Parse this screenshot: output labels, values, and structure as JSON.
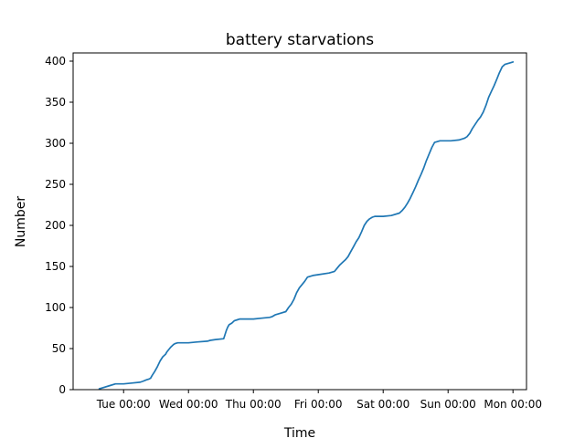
{
  "chart_data": {
    "type": "line",
    "title": "battery starvations",
    "xlabel": "Time",
    "ylabel": "Number",
    "grid": false,
    "legend": "none",
    "x_ticks": [
      {
        "label": "Tue 00:00",
        "x": "2019-01-01 00:00"
      },
      {
        "label": "Wed 00:00",
        "x": "2019-01-02 00:00"
      },
      {
        "label": "Thu 00:00",
        "x": "2019-01-03 00:00"
      },
      {
        "label": "Fri 00:00",
        "x": "2019-01-04 00:00"
      },
      {
        "label": "Sat 00:00",
        "x": "2019-01-05 00:00"
      },
      {
        "label": "Sun 00:00",
        "x": "2019-01-06 00:00"
      },
      {
        "label": "Mon 00:00",
        "x": "2019-01-07 00:00"
      }
    ],
    "xlim": [
      "2018-12-31 05:20",
      "2019-01-07 05:00"
    ],
    "ylim": [
      0,
      410
    ],
    "y_ticks": [
      0,
      50,
      100,
      150,
      200,
      250,
      300,
      350,
      400
    ],
    "series": [
      {
        "name": "",
        "color": "#1f77b4",
        "x": [
          "2018-12-31 15:00",
          "2018-12-31 16:00",
          "2018-12-31 19:00",
          "2018-12-31 21:00",
          "2019-01-01 00:00",
          "2019-01-01 03:00",
          "2019-01-01 06:00",
          "2019-01-01 07:00",
          "2019-01-01 08:30",
          "2019-01-01 09:30",
          "2019-01-01 10:00",
          "2019-01-01 10:30",
          "2019-01-01 11:30",
          "2019-01-01 12:30",
          "2019-01-01 13:30",
          "2019-01-01 14:30",
          "2019-01-01 15:30",
          "2019-01-01 16:00",
          "2019-01-01 17:00",
          "2019-01-01 17:30",
          "2019-01-01 18:30",
          "2019-01-01 19:00",
          "2019-01-01 20:00",
          "2019-01-01 21:00",
          "2019-01-01 21:30",
          "2019-01-02 00:00",
          "2019-01-02 03:00",
          "2019-01-02 07:00",
          "2019-01-02 08:00",
          "2019-01-02 10:00",
          "2019-01-02 13:00",
          "2019-01-02 14:00",
          "2019-01-02 14:30",
          "2019-01-02 15:00",
          "2019-01-02 16:00",
          "2019-01-02 17:00",
          "2019-01-02 18:00",
          "2019-01-02 19:00",
          "2019-01-02 21:00",
          "2019-01-03 00:00",
          "2019-01-03 03:00",
          "2019-01-03 06:00",
          "2019-01-03 07:00",
          "2019-01-03 08:00",
          "2019-01-03 10:00",
          "2019-01-03 12:00",
          "2019-01-03 13:00",
          "2019-01-03 14:00",
          "2019-01-03 15:00",
          "2019-01-03 16:00",
          "2019-01-03 17:00",
          "2019-01-03 18:00",
          "2019-01-03 19:00",
          "2019-01-03 20:00",
          "2019-01-03 22:00",
          "2019-01-04 00:00",
          "2019-01-04 04:00",
          "2019-01-04 06:00",
          "2019-01-04 07:00",
          "2019-01-04 08:00",
          "2019-01-04 09:00",
          "2019-01-04 10:00",
          "2019-01-04 11:00",
          "2019-01-04 12:00",
          "2019-01-04 13:00",
          "2019-01-04 14:00",
          "2019-01-04 15:00",
          "2019-01-04 16:00",
          "2019-01-04 17:00",
          "2019-01-04 18:00",
          "2019-01-04 19:00",
          "2019-01-04 20:00",
          "2019-01-04 21:00",
          "2019-01-04 22:00",
          "2019-01-05 00:00",
          "2019-01-05 03:00",
          "2019-01-05 06:00",
          "2019-01-05 07:00",
          "2019-01-05 08:00",
          "2019-01-05 09:00",
          "2019-01-05 10:00",
          "2019-01-05 11:00",
          "2019-01-05 12:00",
          "2019-01-05 13:00",
          "2019-01-05 14:00",
          "2019-01-05 15:00",
          "2019-01-05 16:00",
          "2019-01-05 17:00",
          "2019-01-05 18:00",
          "2019-01-05 19:00",
          "2019-01-05 20:00",
          "2019-01-05 21:00",
          "2019-01-05 23:00",
          "2019-01-06 01:00",
          "2019-01-06 04:00",
          "2019-01-06 06:00",
          "2019-01-06 07:00",
          "2019-01-06 08:00",
          "2019-01-06 09:00",
          "2019-01-06 10:00",
          "2019-01-06 11:00",
          "2019-01-06 12:00",
          "2019-01-06 13:00",
          "2019-01-06 14:00",
          "2019-01-06 15:00",
          "2019-01-06 16:00",
          "2019-01-06 17:00",
          "2019-01-06 18:00",
          "2019-01-06 19:00",
          "2019-01-06 20:00",
          "2019-01-06 21:00",
          "2019-01-06 22:00",
          "2019-01-06 23:00",
          "2019-01-07 00:00"
        ],
        "y": [
          1,
          2,
          5,
          7,
          7,
          8,
          9,
          10,
          12,
          13,
          14,
          17,
          22,
          28,
          35,
          40,
          43,
          46,
          50,
          52,
          55,
          56,
          57,
          57,
          57,
          57,
          58,
          59,
          60,
          61,
          62,
          72,
          76,
          79,
          81,
          84,
          85,
          86,
          86,
          86,
          87,
          88,
          89,
          91,
          93,
          95,
          100,
          104,
          110,
          118,
          124,
          128,
          132,
          137,
          139,
          140,
          142,
          144,
          148,
          152,
          155,
          158,
          162,
          168,
          174,
          180,
          185,
          192,
          200,
          205,
          208,
          210,
          211,
          211,
          211,
          212,
          215,
          218,
          222,
          227,
          233,
          240,
          247,
          255,
          262,
          270,
          279,
          287,
          295,
          301,
          302,
          303,
          303,
          303,
          304,
          306,
          308,
          312,
          318,
          323,
          328,
          332,
          338,
          346,
          356,
          363,
          370,
          378,
          386,
          393,
          396,
          397,
          398,
          399
        ]
      }
    ]
  }
}
